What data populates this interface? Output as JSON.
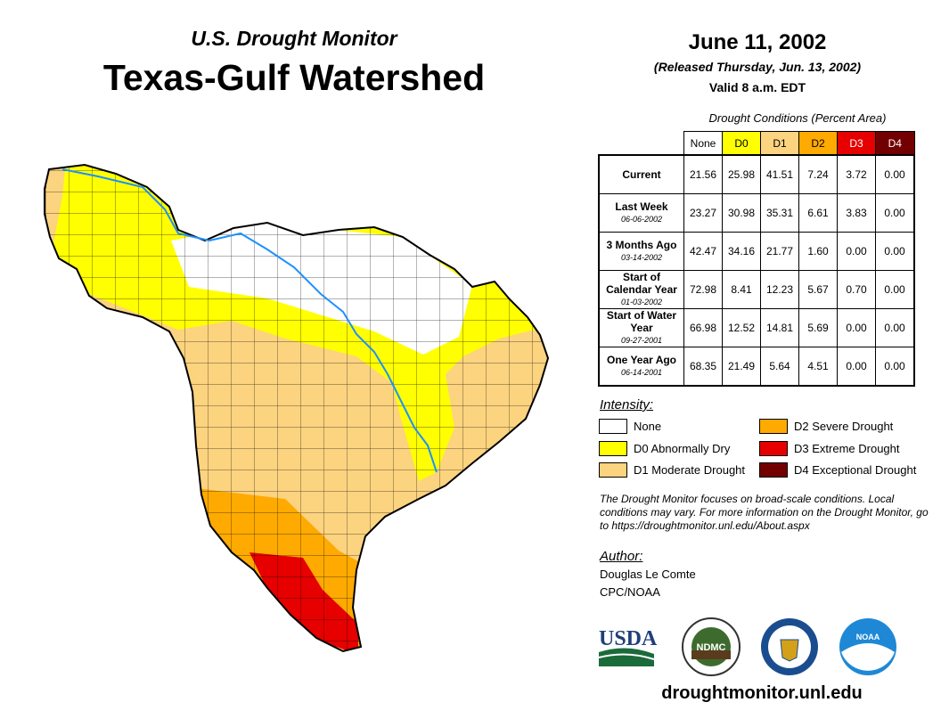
{
  "header": {
    "subtitle": "U.S. Drought Monitor",
    "title": "Texas-Gulf Watershed",
    "date": "June 11, 2002",
    "released": "(Released Thursday, Jun. 13, 2002)",
    "valid": "Valid 8 a.m. EDT"
  },
  "table": {
    "caption": "Drought Conditions (Percent Area)",
    "columns": [
      "None",
      "D0",
      "D1",
      "D2",
      "D3",
      "D4"
    ],
    "rows": [
      {
        "label": "Current",
        "date": "",
        "values": [
          "21.56",
          "25.98",
          "41.51",
          "7.24",
          "3.72",
          "0.00"
        ]
      },
      {
        "label": "Last Week",
        "date": "06-06-2002",
        "values": [
          "23.27",
          "30.98",
          "35.31",
          "6.61",
          "3.83",
          "0.00"
        ]
      },
      {
        "label": "3 Months Ago",
        "date": "03-14-2002",
        "values": [
          "42.47",
          "34.16",
          "21.77",
          "1.60",
          "0.00",
          "0.00"
        ]
      },
      {
        "label": "Start of Calendar Year",
        "date": "01-03-2002",
        "values": [
          "72.98",
          "8.41",
          "12.23",
          "5.67",
          "0.70",
          "0.00"
        ]
      },
      {
        "label": "Start of Water Year",
        "date": "09-27-2001",
        "values": [
          "66.98",
          "12.52",
          "14.81",
          "5.69",
          "0.00",
          "0.00"
        ]
      },
      {
        "label": "One Year Ago",
        "date": "06-14-2001",
        "values": [
          "68.35",
          "21.49",
          "5.64",
          "4.51",
          "0.00",
          "0.00"
        ]
      }
    ]
  },
  "colors": {
    "None": "#ffffff",
    "D0": "#ffff00",
    "D1": "#fcd37f",
    "D2": "#ffaa00",
    "D3": "#e60000",
    "D4": "#730000"
  },
  "legend": {
    "title": "Intensity:",
    "items": [
      "None",
      "D0 Abnormally Dry",
      "D1 Moderate Drought",
      "D2 Severe Drought",
      "D3 Extreme Drought",
      "D4 Exceptional Drought"
    ]
  },
  "note": "The Drought Monitor focuses on broad-scale conditions. Local conditions may vary. For more information on the Drought Monitor, go to https://droughtmonitor.unl.edu/About.aspx",
  "author": {
    "label": "Author:",
    "name": "Douglas Le Comte",
    "org": "CPC/NOAA"
  },
  "logos": {
    "usda": "USDA",
    "ndmc": "NDMC",
    "noaa": "NOAA"
  },
  "url": "droughtmonitor.unl.edu"
}
